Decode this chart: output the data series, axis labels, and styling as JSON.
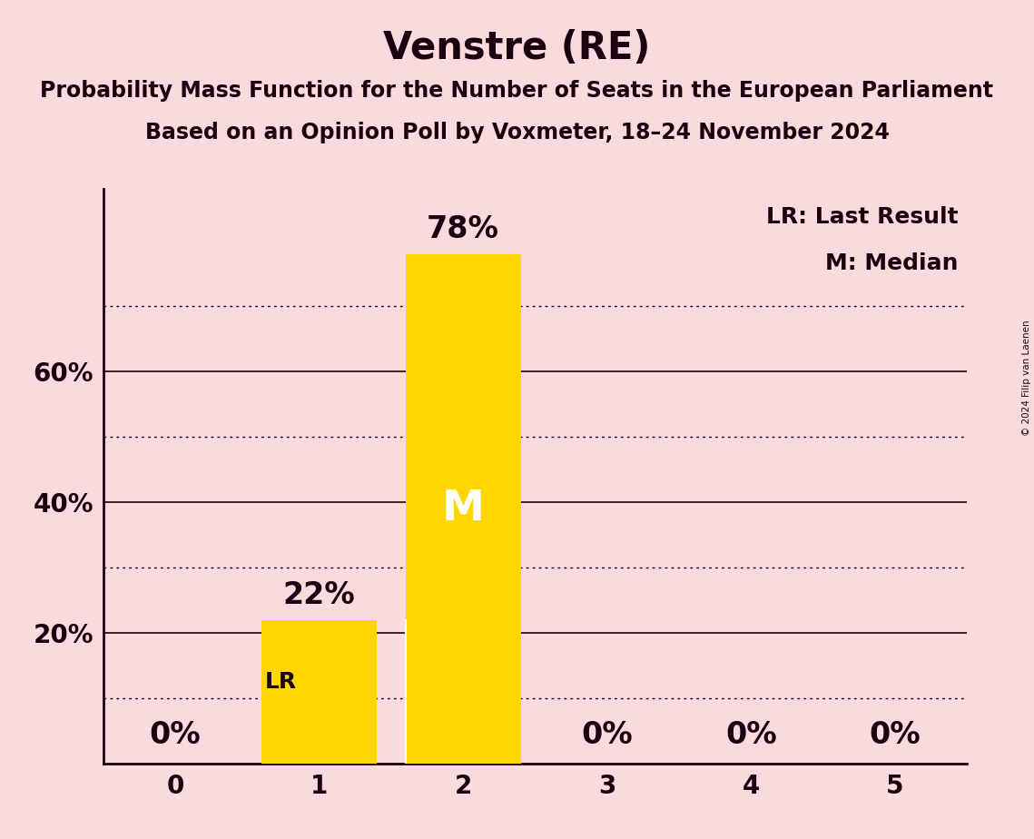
{
  "title": "Venstre (RE)",
  "subtitle1": "Probability Mass Function for the Number of Seats in the European Parliament",
  "subtitle2": "Based on an Opinion Poll by Voxmeter, 18–24 November 2024",
  "copyright": "© 2024 Filip van Laenen",
  "categories": [
    0,
    1,
    2,
    3,
    4,
    5
  ],
  "values": [
    0,
    22,
    78,
    0,
    0,
    0
  ],
  "bar_color": "#FFD700",
  "background_color": "#FADADD",
  "text_color": "#1a0010",
  "solid_gridlines": [
    20,
    40,
    60
  ],
  "dotted_gridlines": [
    10,
    30,
    50,
    70
  ],
  "lr_value": 10,
  "median_seat": 2,
  "legend_lr": "LR: Last Result",
  "legend_m": "M: Median",
  "title_fontsize": 30,
  "subtitle_fontsize": 17,
  "label_fontsize": 18,
  "tick_fontsize": 20,
  "bar_label_fontsize": 24,
  "m_fontsize": 34,
  "ylim_max": 88
}
